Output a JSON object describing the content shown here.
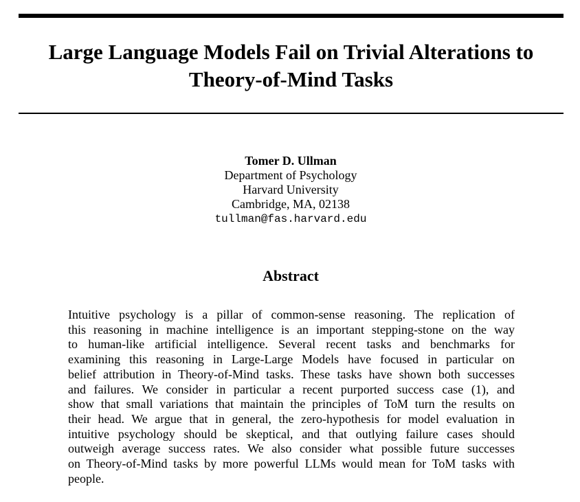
{
  "paper": {
    "title_lines": [
      "Large Language Models Fail on Trivial Alterations to",
      "Theory-of-Mind Tasks"
    ],
    "author": {
      "name": "Tomer D. Ullman",
      "department": "Department of Psychology",
      "institution": "Harvard University",
      "location": "Cambridge, MA, 02138",
      "email": "tullman@fas.harvard.edu"
    },
    "abstract_heading": "Abstract",
    "abstract_lines": [
      "Intuitive psychology is a pillar of common-sense reasoning.  The replication of",
      "this reasoning in machine intelligence is an important stepping-stone on the way",
      "to human-like artificial intelligence.  Several recent tasks and benchmarks for",
      "examining this reasoning in Large-Large Models have focused in particular on",
      "belief attribution in Theory-of-Mind tasks. These tasks have shown both successes",
      "and failures.  We consider in particular a recent purported success case (1), and",
      "show that small variations that maintain the principles of ToM turn the results on",
      "their head. We argue that in general, the zero-hypothesis for model evaluation in",
      "intuitive psychology should be skeptical, and that outlying failure cases should",
      "outweigh average success rates. We also consider what possible future successes",
      "on Theory-of-Mind tasks by more powerful LLMs would mean for ToM tasks with",
      "people."
    ]
  }
}
